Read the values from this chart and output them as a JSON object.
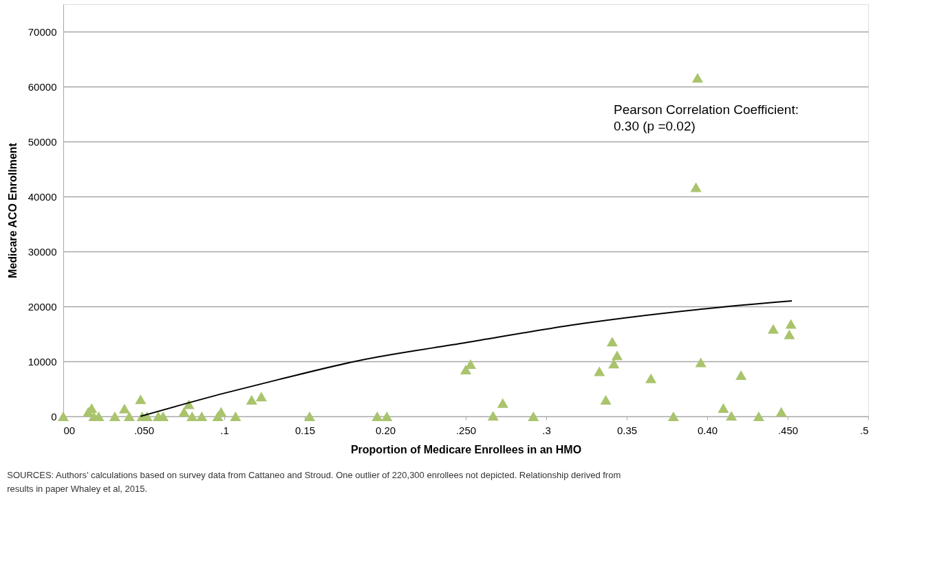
{
  "chart_data": {
    "type": "scatter",
    "xlabel": "Proportion of Medicare Enrollees in an HMO",
    "ylabel": "Medicare ACO  Enrollment",
    "x": [
      0,
      0.0155,
      0.0176,
      0.019,
      0.022,
      0.032,
      0.038,
      0.041,
      0.048,
      0.049,
      0.052,
      0.059,
      0.062,
      0.075,
      0.078,
      0.08,
      0.086,
      0.096,
      0.098,
      0.107,
      0.117,
      0.123,
      0.153,
      0.195,
      0.201,
      0.25,
      0.253,
      0.267,
      0.273,
      0.292,
      0.333,
      0.337,
      0.341,
      0.342,
      0.344,
      0.365,
      0.379,
      0.393,
      0.394,
      0.396,
      0.41,
      0.415,
      0.421,
      0.432,
      0.441,
      0.446,
      0.451,
      0.452
    ],
    "series": [
      {
        "color": "#a9c46c",
        "marker": "triangle",
        "values": [
          0,
          800,
          1500,
          0,
          0,
          0,
          1400,
          0,
          3100,
          0,
          0,
          0,
          0,
          800,
          2200,
          0,
          0,
          0,
          800,
          0,
          3000,
          3600,
          0,
          0,
          0,
          8500,
          9500,
          100,
          2400,
          0,
          8200,
          3000,
          13600,
          9600,
          11100,
          6900,
          0,
          41700,
          61600,
          9800,
          1500,
          100,
          7500,
          0,
          15900,
          800,
          14900,
          16800
        ]
      },
      {
        "type": "line",
        "color": "#000000",
        "marker": "none",
        "line_style": "solid",
        "x": [
          0.048,
          0.1,
          0.134,
          0.183,
          0.25,
          0.323,
          0.403,
          0.4526
        ],
        "values": [
          0,
          4200,
          6700,
          10100,
          13400,
          16900,
          19700,
          21000
        ]
      }
    ],
    "xlim": [
      0,
      0.5
    ],
    "xticks": [
      {
        "value": 0,
        "label": "00"
      },
      {
        "value": 0.05,
        "label": ".050"
      },
      {
        "value": 0.1,
        "label": ".1"
      },
      0.15,
      {
        "value": 0.2,
        "label": "0.20"
      },
      {
        "value": 0.25,
        "label": ".250"
      },
      {
        "value": 0.3,
        "label": ".3"
      },
      0.35,
      {
        "value": 0.4,
        "label": "0.40"
      },
      {
        "value": 0.45,
        "label": ".450"
      },
      {
        "value": 0.5,
        "label": ".5"
      }
    ],
    "ylim": [
      0,
      75000
    ],
    "yticks": [
      0,
      10000,
      20000,
      30000,
      40000,
      50000,
      60000,
      70000
    ],
    "grid": "y",
    "annotations": [
      "Pearson Correlation Coefficient: 0.30 (p =0.02)",
      "SOURCES: Authors’ calculations based on survey data from Cattaneo and Stroud. One outlier of 220,300 enrollees not depicted. Relationship derived from results in paper Whaley et al, 2015."
    ]
  }
}
